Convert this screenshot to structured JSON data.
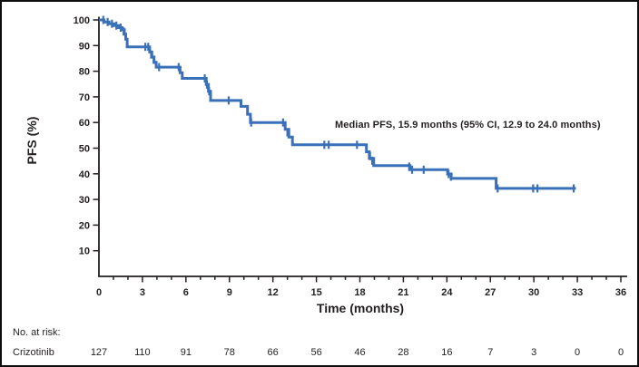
{
  "figure": {
    "ylabel": "PFS (%)",
    "xlabel": "Time (months)",
    "annotation": "Median PFS, 15.9 months (95% CI, 12.9 to 24.0 months)",
    "at_risk_header": "No. at risk:",
    "at_risk_label": "Crizotinib"
  },
  "colors": {
    "curve": "#3a70b8",
    "axis": "#231f20",
    "text": "#231f20",
    "background": "#ffffff",
    "frame": "#0d0d0d"
  },
  "chart_data": {
    "type": "line",
    "subtype": "kaplan_meier_step",
    "title": "",
    "xlabel": "Time (months)",
    "ylabel": "PFS (%)",
    "xlim": [
      0,
      36
    ],
    "ylim": [
      0,
      100
    ],
    "xticks": [
      0,
      3,
      6,
      9,
      12,
      15,
      18,
      21,
      24,
      27,
      30,
      33,
      36
    ],
    "xminor_step": 1,
    "yticks": [
      10,
      20,
      30,
      40,
      50,
      60,
      70,
      80,
      90,
      100
    ],
    "grid": false,
    "legend": "none",
    "annotation": "Median PFS, 15.9 months (95% CI, 12.9 to 24.0 months)",
    "series": [
      {
        "name": "Crizotinib",
        "color": "#3a70b8",
        "median_months": 15.9,
        "ci95_months": [
          12.9,
          24.0
        ],
        "end_time": 32.9,
        "steps": [
          [
            0,
            100
          ],
          [
            0.35,
            99.2
          ],
          [
            0.7,
            98.5
          ],
          [
            1.05,
            97.8
          ],
          [
            1.35,
            97.0
          ],
          [
            1.6,
            96.2
          ],
          [
            1.75,
            94.5
          ],
          [
            1.85,
            92.5
          ],
          [
            1.95,
            89.5
          ],
          [
            3.5,
            87.5
          ],
          [
            3.65,
            85.5
          ],
          [
            3.8,
            83.5
          ],
          [
            3.95,
            81.6
          ],
          [
            5.6,
            79.4
          ],
          [
            5.75,
            77.2
          ],
          [
            7.4,
            74.8
          ],
          [
            7.55,
            72.2
          ],
          [
            7.7,
            68.6
          ],
          [
            9.8,
            66.3
          ],
          [
            10.25,
            63.2
          ],
          [
            10.45,
            60.0
          ],
          [
            12.85,
            57.3
          ],
          [
            13.1,
            54.3
          ],
          [
            13.35,
            51.3
          ],
          [
            18.45,
            48.6
          ],
          [
            18.65,
            46.0
          ],
          [
            18.95,
            43.2
          ],
          [
            21.45,
            41.6
          ],
          [
            24.05,
            39.9
          ],
          [
            24.3,
            38.2
          ],
          [
            27.4,
            34.3
          ]
        ],
        "censors": [
          [
            0.3,
            100
          ],
          [
            0.6,
            99.2
          ],
          [
            0.9,
            98.5
          ],
          [
            1.2,
            97.8
          ],
          [
            1.5,
            97.0
          ],
          [
            1.7,
            95.5
          ],
          [
            1.97,
            90.8
          ],
          [
            3.2,
            89.5
          ],
          [
            3.4,
            89.5
          ],
          [
            3.6,
            86.5
          ],
          [
            3.78,
            84.5
          ],
          [
            4.15,
            81.6
          ],
          [
            5.5,
            81.6
          ],
          [
            7.3,
            77.2
          ],
          [
            7.45,
            74.8
          ],
          [
            7.6,
            72.2
          ],
          [
            8.95,
            68.6
          ],
          [
            10.5,
            60.0
          ],
          [
            12.7,
            60.0
          ],
          [
            13.0,
            56.2
          ],
          [
            15.55,
            51.3
          ],
          [
            15.85,
            51.3
          ],
          [
            17.8,
            51.3
          ],
          [
            18.7,
            46.9
          ],
          [
            18.85,
            45.1
          ],
          [
            21.4,
            42.8
          ],
          [
            21.6,
            41.6
          ],
          [
            22.4,
            41.6
          ],
          [
            24.12,
            39.9
          ],
          [
            24.28,
            38.9
          ],
          [
            27.5,
            34.3
          ],
          [
            29.95,
            34.3
          ],
          [
            30.25,
            34.3
          ],
          [
            32.75,
            34.3
          ]
        ]
      }
    ],
    "at_risk": {
      "label": "Crizotinib",
      "times": [
        0,
        3,
        6,
        9,
        12,
        15,
        18,
        21,
        24,
        27,
        30,
        33,
        36
      ],
      "counts": [
        127,
        110,
        91,
        78,
        66,
        56,
        46,
        28,
        16,
        7,
        3,
        0,
        0
      ]
    }
  }
}
